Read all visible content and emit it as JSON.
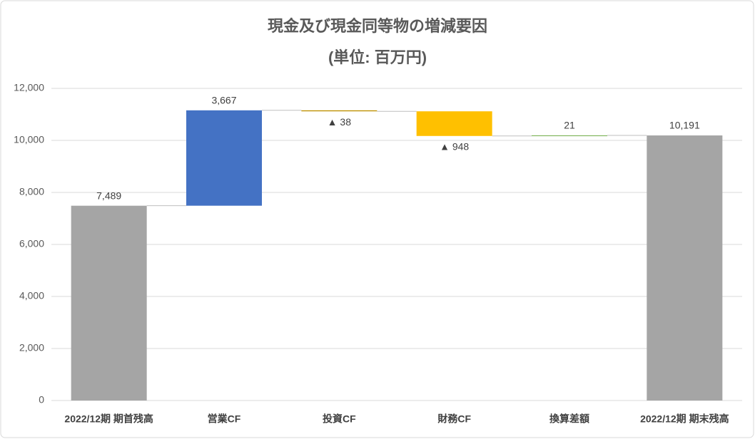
{
  "chart_data": {
    "type": "waterfall",
    "title": "現金及び現金同等物の増減要因",
    "subtitle": "(単位: 百万円)",
    "categories": [
      "2022/12期 期首残高",
      "営業CF",
      "投資CF",
      "財務CF",
      "換算差額",
      "2022/12期 期末残高"
    ],
    "values": [
      7489,
      3667,
      -38,
      -948,
      21,
      10191
    ],
    "value_labels": [
      "7,489",
      "3,667",
      "▲ 38",
      "▲ 948",
      "21",
      "10,191"
    ],
    "totals": [
      true,
      false,
      false,
      false,
      false,
      true
    ],
    "colors": [
      "#a5a5a5",
      "#4472c4",
      "#bf9000",
      "#ffc000",
      "#70ad47",
      "#a5a5a5"
    ],
    "ylim": [
      0,
      12000
    ],
    "yticks": [
      0,
      {
        "value": 2000,
        "label": "2,000"
      },
      {
        "value": 4000,
        "label": "4,000"
      },
      {
        "value": 6000,
        "label": "6,000"
      },
      {
        "value": 8000,
        "label": "8,000"
      },
      {
        "value": 10000,
        "label": "10,000"
      },
      {
        "value": 12000,
        "label": "12,000"
      }
    ],
    "grid": true
  }
}
